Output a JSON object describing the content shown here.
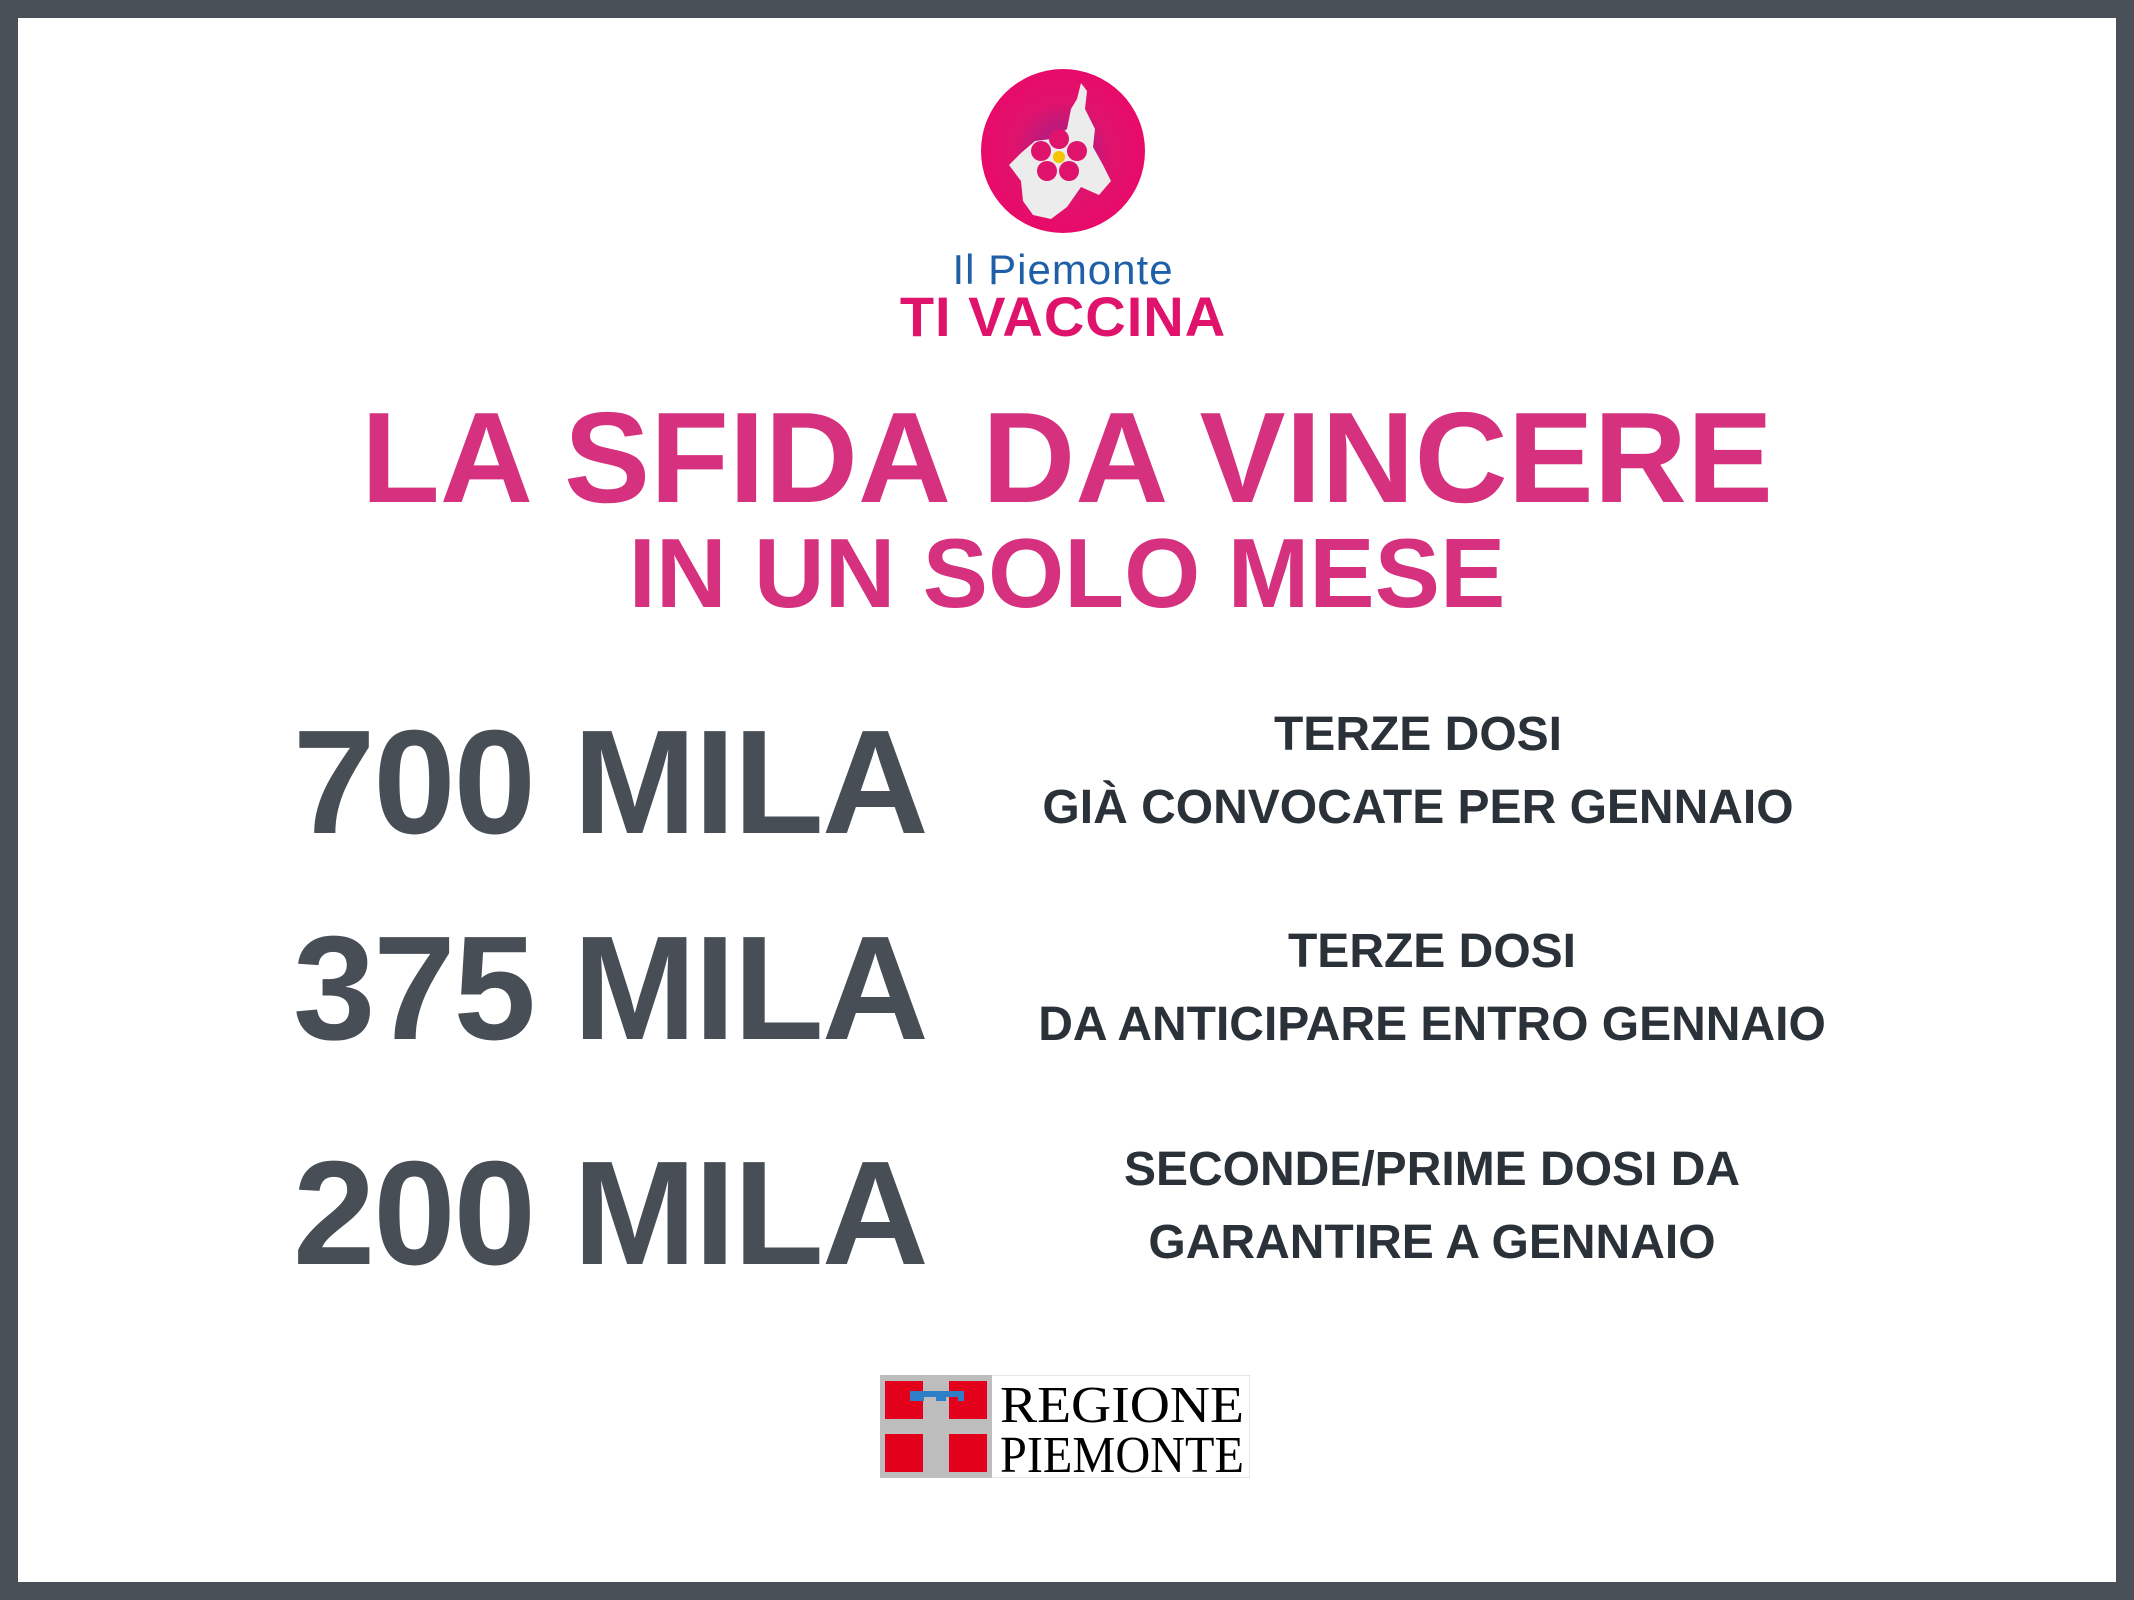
{
  "header": {
    "logo_line1": "Il Piemonte",
    "logo_line2": "TI VACCINA",
    "title": "LA SFIDA DA VINCERE",
    "subtitle": "IN UN SOLO MESE"
  },
  "stats": [
    {
      "value": "700 MILA",
      "line1": "TERZE DOSI",
      "line2": "GIÀ CONVOCATE PER GENNAIO"
    },
    {
      "value": "375 MILA",
      "line1": "TERZE DOSI",
      "line2": "DA ANTICIPARE ENTRO GENNAIO"
    },
    {
      "value": "200 MILA",
      "line1": "SECONDE/PRIME DOSI DA",
      "line2": "GARANTIRE A GENNAIO"
    }
  ],
  "footer": {
    "logo_line1": "REGIONE",
    "logo_line2": "PIEMONTE"
  },
  "colors": {
    "border": "#4a5058",
    "accent": "#d6317f",
    "number": "#474e56",
    "text": "#2b3138"
  }
}
